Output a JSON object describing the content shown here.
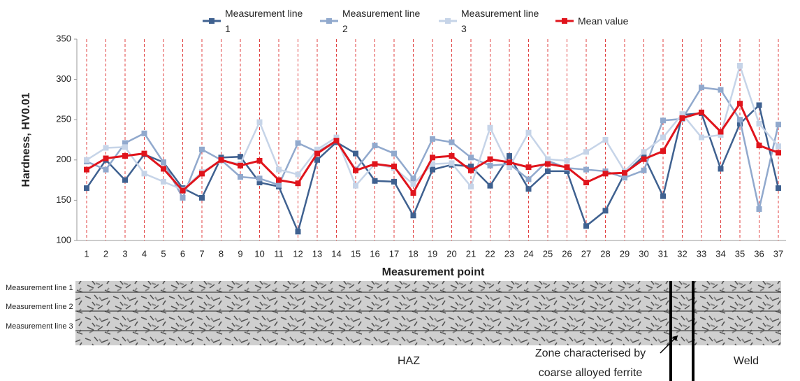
{
  "chart_data": {
    "type": "line",
    "y_label": "Hardness, HV0.01",
    "x_label": "Measurement point",
    "categories": [
      "1",
      "2",
      "3",
      "4",
      "5",
      "6",
      "7",
      "8",
      "9",
      "10",
      "11",
      "12",
      "13",
      "14",
      "15",
      "16",
      "17",
      "18",
      "19",
      "20",
      "21",
      "22",
      "23",
      "24",
      "25",
      "26",
      "27",
      "28",
      "29",
      "30",
      "31",
      "32",
      "33",
      "34",
      "35",
      "36",
      "37"
    ],
    "series": [
      {
        "name": "Measurement line 1",
        "color": "#3f6190",
        "values": [
          165,
          200,
          175,
          207,
          197,
          165,
          153,
          203,
          204,
          172,
          167,
          111,
          200,
          222,
          208,
          174,
          173,
          131,
          188,
          194,
          192,
          168,
          205,
          164,
          186,
          186,
          118,
          137,
          183,
          205,
          155,
          256,
          258,
          189,
          245,
          268,
          165
        ]
      },
      {
        "name": "Measurement line 2",
        "color": "#91a9cd",
        "values": [
          198,
          188,
          221,
          233,
          197,
          153,
          213,
          200,
          179,
          177,
          169,
          221,
          210,
          224,
          188,
          218,
          208,
          177,
          226,
          222,
          203,
          193,
          195,
          176,
          199,
          190,
          188,
          186,
          178,
          187,
          249,
          251,
          290,
          287,
          250,
          139,
          244
        ]
      },
      {
        "name": "Measurement line 3",
        "color": "#c6d4e8",
        "values": [
          200,
          215,
          216,
          183,
          173,
          163,
          185,
          199,
          195,
          247,
          188,
          182,
          213,
          228,
          168,
          195,
          190,
          170,
          195,
          196,
          167,
          240,
          191,
          234,
          201,
          199,
          210,
          225,
          186,
          210,
          228,
          257,
          228,
          231,
          317,
          245,
          217
        ]
      },
      {
        "name": "Mean value",
        "color": "#e0141c",
        "values": [
          188,
          202,
          205,
          208,
          189,
          162,
          183,
          200,
          193,
          199,
          175,
          171,
          208,
          224,
          187,
          195,
          192,
          159,
          203,
          205,
          187,
          201,
          197,
          191,
          195,
          191,
          172,
          183,
          184,
          201,
          211,
          252,
          259,
          235,
          270,
          218,
          209
        ]
      }
    ],
    "ylim": [
      100,
      350
    ],
    "yticks": [
      100,
      150,
      200,
      250,
      300,
      350
    ],
    "grid_color": "#e04040",
    "annotations": {
      "line_labels": [
        "Measurement line 1",
        "Measurement line 2",
        "Measurement line 3"
      ],
      "haz": "HAZ",
      "zone": [
        "Zone characterised by",
        "coarse alloyed ferrite"
      ],
      "weld": "Weld"
    }
  }
}
